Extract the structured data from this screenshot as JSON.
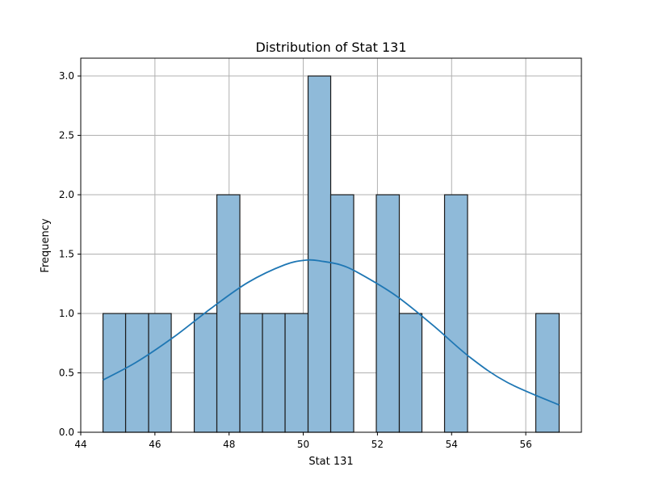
{
  "chart_data": {
    "type": "bar",
    "title": "Distribution of Stat 131",
    "xlabel": "Stat 131",
    "ylabel": "Frequency",
    "xlim": [
      44,
      57.5
    ],
    "ylim": [
      0,
      3.15
    ],
    "grid": true,
    "bins": [
      {
        "x0": 44.6,
        "x1": 45.21,
        "count": 1
      },
      {
        "x0": 45.21,
        "x1": 45.83,
        "count": 1
      },
      {
        "x0": 45.83,
        "x1": 46.44,
        "count": 1
      },
      {
        "x0": 46.44,
        "x1": 47.06,
        "count": 0
      },
      {
        "x0": 47.06,
        "x1": 47.67,
        "count": 1
      },
      {
        "x0": 47.67,
        "x1": 48.29,
        "count": 2
      },
      {
        "x0": 48.29,
        "x1": 48.9,
        "count": 1
      },
      {
        "x0": 48.9,
        "x1": 49.51,
        "count": 1
      },
      {
        "x0": 49.51,
        "x1": 50.13,
        "count": 1
      },
      {
        "x0": 50.13,
        "x1": 50.74,
        "count": 3
      },
      {
        "x0": 50.74,
        "x1": 51.36,
        "count": 2
      },
      {
        "x0": 51.36,
        "x1": 51.97,
        "count": 0
      },
      {
        "x0": 51.97,
        "x1": 52.59,
        "count": 2
      },
      {
        "x0": 52.59,
        "x1": 53.2,
        "count": 1
      },
      {
        "x0": 53.2,
        "x1": 53.81,
        "count": 0
      },
      {
        "x0": 53.81,
        "x1": 54.43,
        "count": 2
      },
      {
        "x0": 54.43,
        "x1": 55.04,
        "count": 0
      },
      {
        "x0": 55.04,
        "x1": 55.66,
        "count": 0
      },
      {
        "x0": 55.66,
        "x1": 56.27,
        "count": 0
      },
      {
        "x0": 56.27,
        "x1": 56.9,
        "count": 1
      }
    ],
    "kde": {
      "x": [
        44.6,
        45.5,
        46.5,
        47.5,
        48.5,
        49.5,
        50.1,
        50.5,
        51.0,
        51.5,
        52.5,
        53.5,
        54.5,
        55.5,
        56.9
      ],
      "y": [
        0.44,
        0.59,
        0.8,
        1.04,
        1.26,
        1.41,
        1.45,
        1.44,
        1.41,
        1.34,
        1.15,
        0.9,
        0.63,
        0.42,
        0.23
      ]
    },
    "xticks": [
      44,
      46,
      48,
      50,
      52,
      54,
      56
    ],
    "yticks": [
      0.0,
      0.5,
      1.0,
      1.5,
      2.0,
      2.5,
      3.0
    ],
    "ytick_labels": [
      "0.0",
      "0.5",
      "1.0",
      "1.5",
      "2.0",
      "2.5",
      "3.0"
    ],
    "colors": {
      "bar_fill": "#8fbad9",
      "bar_edge": "#1a1a1a",
      "kde_line": "#1f77b4",
      "grid": "#b0b0b0"
    }
  }
}
